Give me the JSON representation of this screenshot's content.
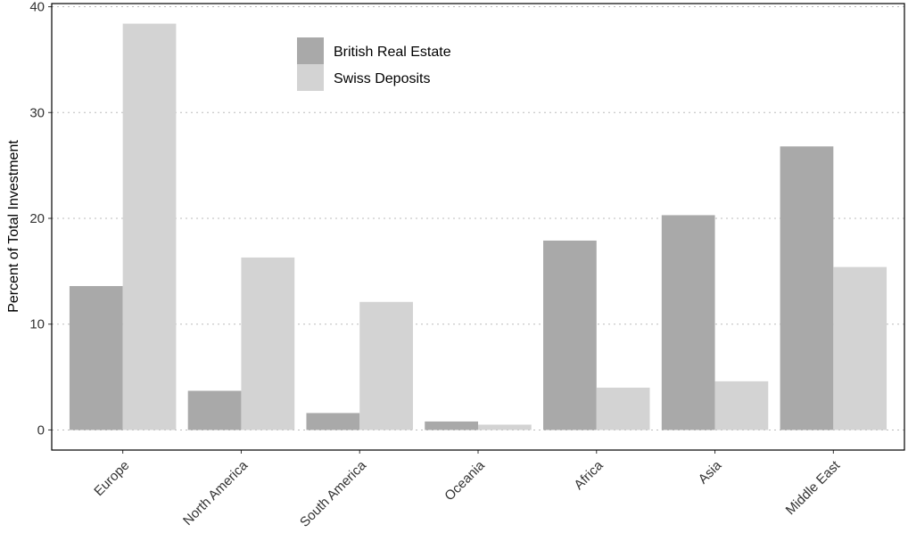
{
  "chart_data": {
    "type": "bar",
    "y_label": "Percent of Total Investment",
    "categories": [
      "Europe",
      "North America",
      "South America",
      "Oceania",
      "Africa",
      "Asia",
      "Middle East"
    ],
    "series": [
      {
        "name": "British Real Estate",
        "color": "#a9a9a9",
        "values": [
          13.6,
          3.7,
          1.6,
          0.8,
          17.9,
          20.3,
          26.8
        ]
      },
      {
        "name": "Swiss Deposits",
        "color": "#d3d3d3",
        "values": [
          38.4,
          16.3,
          12.1,
          0.5,
          4.0,
          4.6,
          15.4
        ]
      }
    ],
    "ylim": [
      -1.9,
      40.3
    ],
    "yticks": [
      0,
      10,
      20,
      30,
      40
    ],
    "grid": true,
    "legend": "top"
  }
}
